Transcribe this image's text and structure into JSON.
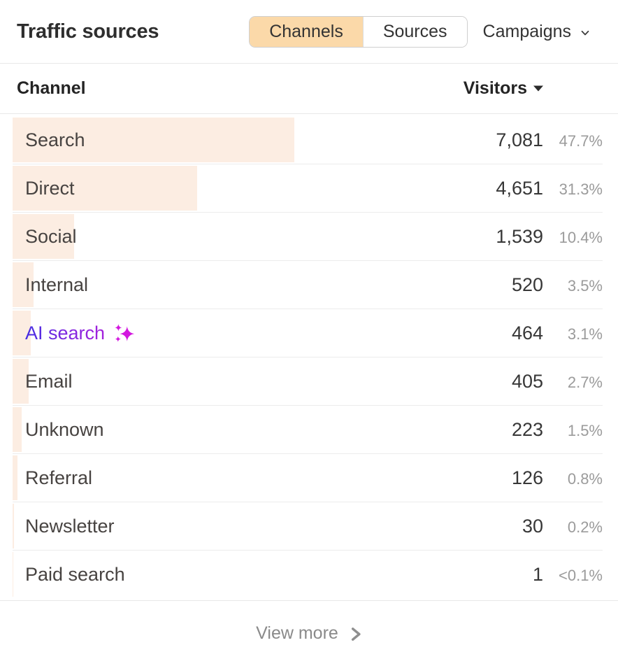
{
  "header": {
    "title": "Traffic sources",
    "tabs": [
      {
        "label": "Channels",
        "active": true
      },
      {
        "label": "Sources",
        "active": false
      }
    ],
    "campaigns_label": "Campaigns"
  },
  "table": {
    "columns": {
      "channel": "Channel",
      "visitors": "Visitors"
    },
    "sort": {
      "column": "Visitors",
      "direction": "desc"
    },
    "rows": [
      {
        "channel": "Search",
        "visitors": "7,081",
        "percent": "47.7%",
        "bar_pct": 47.7,
        "ai": false
      },
      {
        "channel": "Direct",
        "visitors": "4,651",
        "percent": "31.3%",
        "bar_pct": 31.3,
        "ai": false
      },
      {
        "channel": "Social",
        "visitors": "1,539",
        "percent": "10.4%",
        "bar_pct": 10.4,
        "ai": false
      },
      {
        "channel": "Internal",
        "visitors": "520",
        "percent": "3.5%",
        "bar_pct": 3.5,
        "ai": false
      },
      {
        "channel": "AI search",
        "visitors": "464",
        "percent": "3.1%",
        "bar_pct": 3.1,
        "ai": true
      },
      {
        "channel": "Email",
        "visitors": "405",
        "percent": "2.7%",
        "bar_pct": 2.7,
        "ai": false
      },
      {
        "channel": "Unknown",
        "visitors": "223",
        "percent": "1.5%",
        "bar_pct": 1.5,
        "ai": false
      },
      {
        "channel": "Referral",
        "visitors": "126",
        "percent": "0.8%",
        "bar_pct": 0.8,
        "ai": false
      },
      {
        "channel": "Newsletter",
        "visitors": "30",
        "percent": "0.2%",
        "bar_pct": 0.2,
        "ai": false
      },
      {
        "channel": "Paid search",
        "visitors": "1",
        "percent": "<0.1%",
        "bar_pct": 0.06,
        "ai": false
      }
    ]
  },
  "footer": {
    "view_more_label": "View more"
  },
  "icons": {
    "sort": "triangle-down-icon",
    "campaigns": "chevron-down-icon",
    "view_more": "chevron-right-icon",
    "ai_row": "sparkles-icon"
  },
  "colors": {
    "active_tab_bg": "#fbd9a9",
    "row_bar_bg": "#fcede2",
    "separator": "#e8e8e8",
    "percent_text": "#9b9b9b",
    "ai_gradient_start": "#3230e3",
    "ai_gradient_end": "#a521dc",
    "sparkles": "#d317df",
    "view_more_text": "#8a8a8a"
  },
  "chart_data": {
    "type": "bar",
    "title": "Traffic sources — Channels",
    "categories": [
      "Search",
      "Direct",
      "Social",
      "Internal",
      "AI search",
      "Email",
      "Unknown",
      "Referral",
      "Newsletter",
      "Paid search"
    ],
    "values": [
      7081,
      4651,
      1539,
      520,
      464,
      405,
      223,
      126,
      30,
      1
    ],
    "percents": [
      47.7,
      31.3,
      10.4,
      3.5,
      3.1,
      2.7,
      1.5,
      0.8,
      0.2,
      0.05
    ],
    "xlabel": "Channel",
    "ylabel": "Visitors",
    "orientation": "horizontal"
  }
}
